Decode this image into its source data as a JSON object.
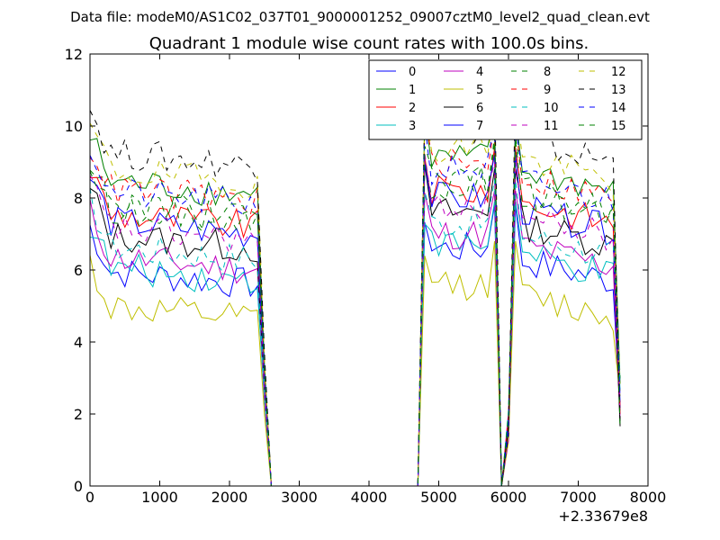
{
  "chart_data": {
    "type": "line",
    "suptitle": "Data file: modeM0/AS1C02_037T01_9000001252_09007cztM0_level2_quad_clean.evt",
    "title": "Quadrant 1 module wise count rates with 100.0s bins.",
    "xlabel": "",
    "ylabel": "",
    "x_offset_label": "+2.33679e8",
    "xlim": [
      0,
      8000
    ],
    "ylim": [
      0,
      12
    ],
    "xticks": [
      0,
      1000,
      2000,
      3000,
      4000,
      5000,
      6000,
      7000,
      8000
    ],
    "xtick_labels": [
      "0",
      "1000",
      "2000",
      "3000",
      "4000",
      "5000",
      "6000",
      "7000",
      "8000"
    ],
    "yticks": [
      0,
      2,
      4,
      6,
      8,
      10,
      12
    ],
    "ytick_labels": [
      "0",
      "2",
      "4",
      "6",
      "8",
      "10",
      "12"
    ],
    "grid": false,
    "legend_position": "top-right",
    "legend_columns": 4,
    "series": [
      {
        "name": "0",
        "color": "#0000ff",
        "dash": "solid",
        "base": 6.0
      },
      {
        "name": "1",
        "color": "#008000",
        "dash": "solid",
        "base": 8.5
      },
      {
        "name": "2",
        "color": "#ff0000",
        "dash": "solid",
        "base": 7.6
      },
      {
        "name": "3",
        "color": "#00bfbf",
        "dash": "solid",
        "base": 6.1
      },
      {
        "name": "4",
        "color": "#bf00bf",
        "dash": "solid",
        "base": 6.4
      },
      {
        "name": "5",
        "color": "#bfbf00",
        "dash": "solid",
        "base": 5.0
      },
      {
        "name": "6",
        "color": "#000000",
        "dash": "solid",
        "base": 7.0
      },
      {
        "name": "7",
        "color": "#0000ff",
        "dash": "solid",
        "base": 7.4
      },
      {
        "name": "8",
        "color": "#008000",
        "dash": "dashed",
        "base": 7.8
      },
      {
        "name": "9",
        "color": "#ff0000",
        "dash": "dashed",
        "base": 8.3
      },
      {
        "name": "10",
        "color": "#00bfbf",
        "dash": "dashed",
        "base": 6.7
      },
      {
        "name": "11",
        "color": "#bf00bf",
        "dash": "dashed",
        "base": 7.2
      },
      {
        "name": "12",
        "color": "#bfbf00",
        "dash": "dashed",
        "base": 8.8
      },
      {
        "name": "13",
        "color": "#000000",
        "dash": "dashed",
        "base": 9.3
      },
      {
        "name": "14",
        "color": "#0000ff",
        "dash": "dashed",
        "base": 8.2
      },
      {
        "name": "15",
        "color": "#008000",
        "dash": "dashed",
        "base": 7.9
      }
    ],
    "segments": [
      {
        "x_start": 0,
        "x_end": 2400,
        "step": 100
      },
      {
        "x_start": 4800,
        "x_end": 5800,
        "step": 100
      },
      {
        "x_start": 6100,
        "x_end": 7500,
        "step": 100
      }
    ],
    "drop_x": [
      2500,
      2600
    ],
    "zero_range": [
      2600,
      4700
    ],
    "spike_x": [
      5900,
      6000
    ],
    "last_x": 7600
  }
}
